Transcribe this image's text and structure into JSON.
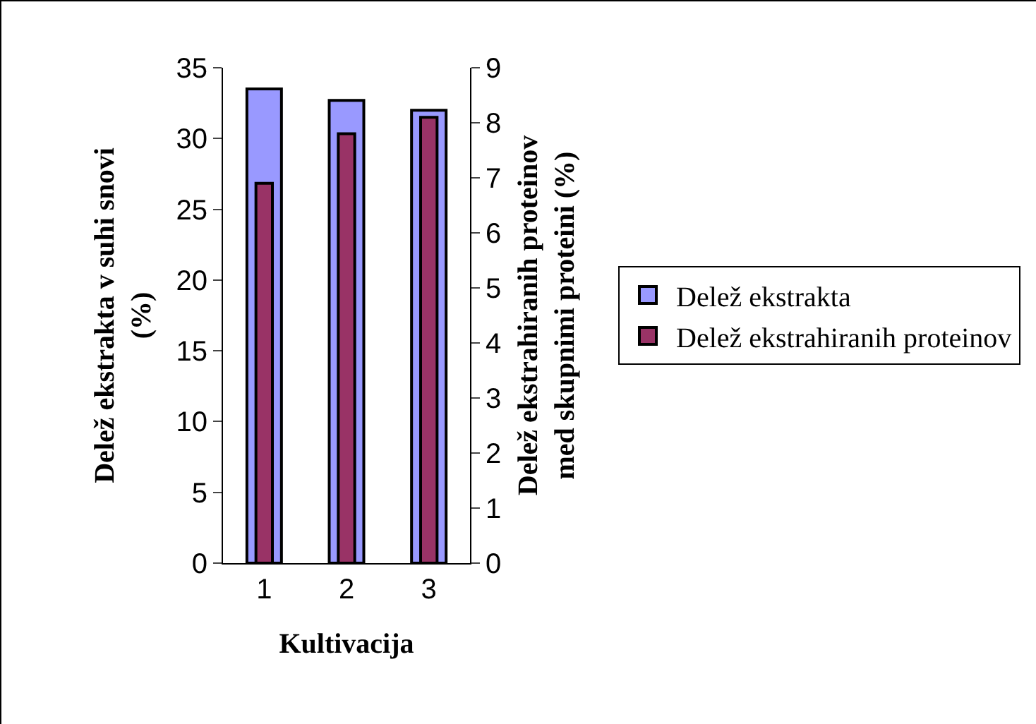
{
  "chart_data": {
    "type": "bar",
    "xlabel": "Kultivacija",
    "ylabel": "Delež ekstrakta v suhi snovi (%)",
    "y2label": "Delež ekstrahiranih proteinov med skupnimi proteini (%)",
    "categories": [
      "1",
      "2",
      "3"
    ],
    "series": [
      {
        "name": "Delež ekstrakta",
        "color": "#9999ff",
        "values": [
          33.5,
          32.7,
          32.0
        ]
      },
      {
        "name": "Delež ekstrahiranih proteinov",
        "color": "#993366",
        "values": [
          6.9,
          7.8,
          8.1
        ],
        "axis": "y2"
      }
    ],
    "ylim": [
      0,
      35
    ],
    "yticks": [
      0,
      5,
      10,
      15,
      20,
      25,
      30,
      35
    ],
    "y2lim": [
      0,
      9
    ],
    "y2ticks": [
      0,
      1,
      2,
      3,
      4,
      5,
      6,
      7,
      8,
      9
    ],
    "grid": false,
    "legend": "right"
  }
}
